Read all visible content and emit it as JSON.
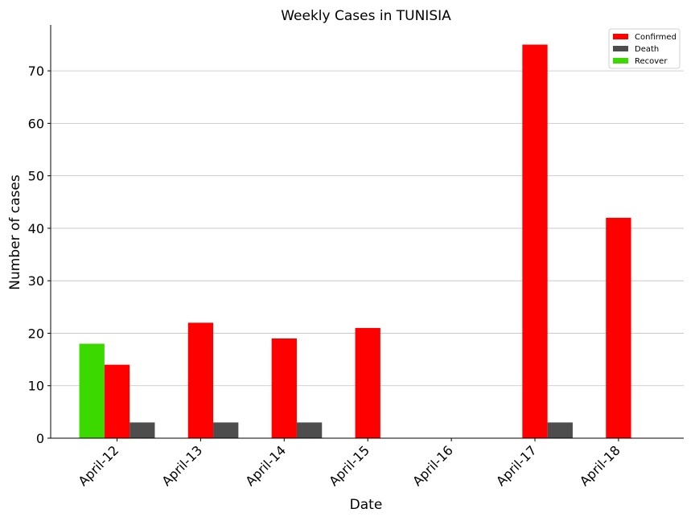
{
  "chart_data": {
    "type": "bar",
    "title": "Weekly Cases in TUNISIA",
    "xlabel": "Date",
    "ylabel": "Number of cases",
    "categories": [
      "April-12",
      "April-13",
      "April-14",
      "April-15",
      "April-16",
      "April-17",
      "April-18"
    ],
    "series": [
      {
        "name": "Recover",
        "color": "#3cd900",
        "values": [
          18,
          0,
          0,
          0,
          0,
          0,
          0
        ]
      },
      {
        "name": "Confirmed",
        "color": "#ff0000",
        "values": [
          14,
          22,
          19,
          21,
          0,
          75,
          42
        ]
      },
      {
        "name": "Death",
        "color": "#4d4d4d",
        "values": [
          3,
          3,
          3,
          0,
          0,
          3,
          0
        ]
      }
    ],
    "legend": {
      "position": "top-right",
      "order": [
        "Confirmed",
        "Death",
        "Recover"
      ]
    },
    "yticks": [
      0,
      10,
      20,
      30,
      40,
      50,
      60,
      70
    ],
    "ylim": [
      0,
      78.75
    ],
    "grid": "horizontal",
    "axis_color": "#000000",
    "grid_color": "#c0c0c0"
  }
}
